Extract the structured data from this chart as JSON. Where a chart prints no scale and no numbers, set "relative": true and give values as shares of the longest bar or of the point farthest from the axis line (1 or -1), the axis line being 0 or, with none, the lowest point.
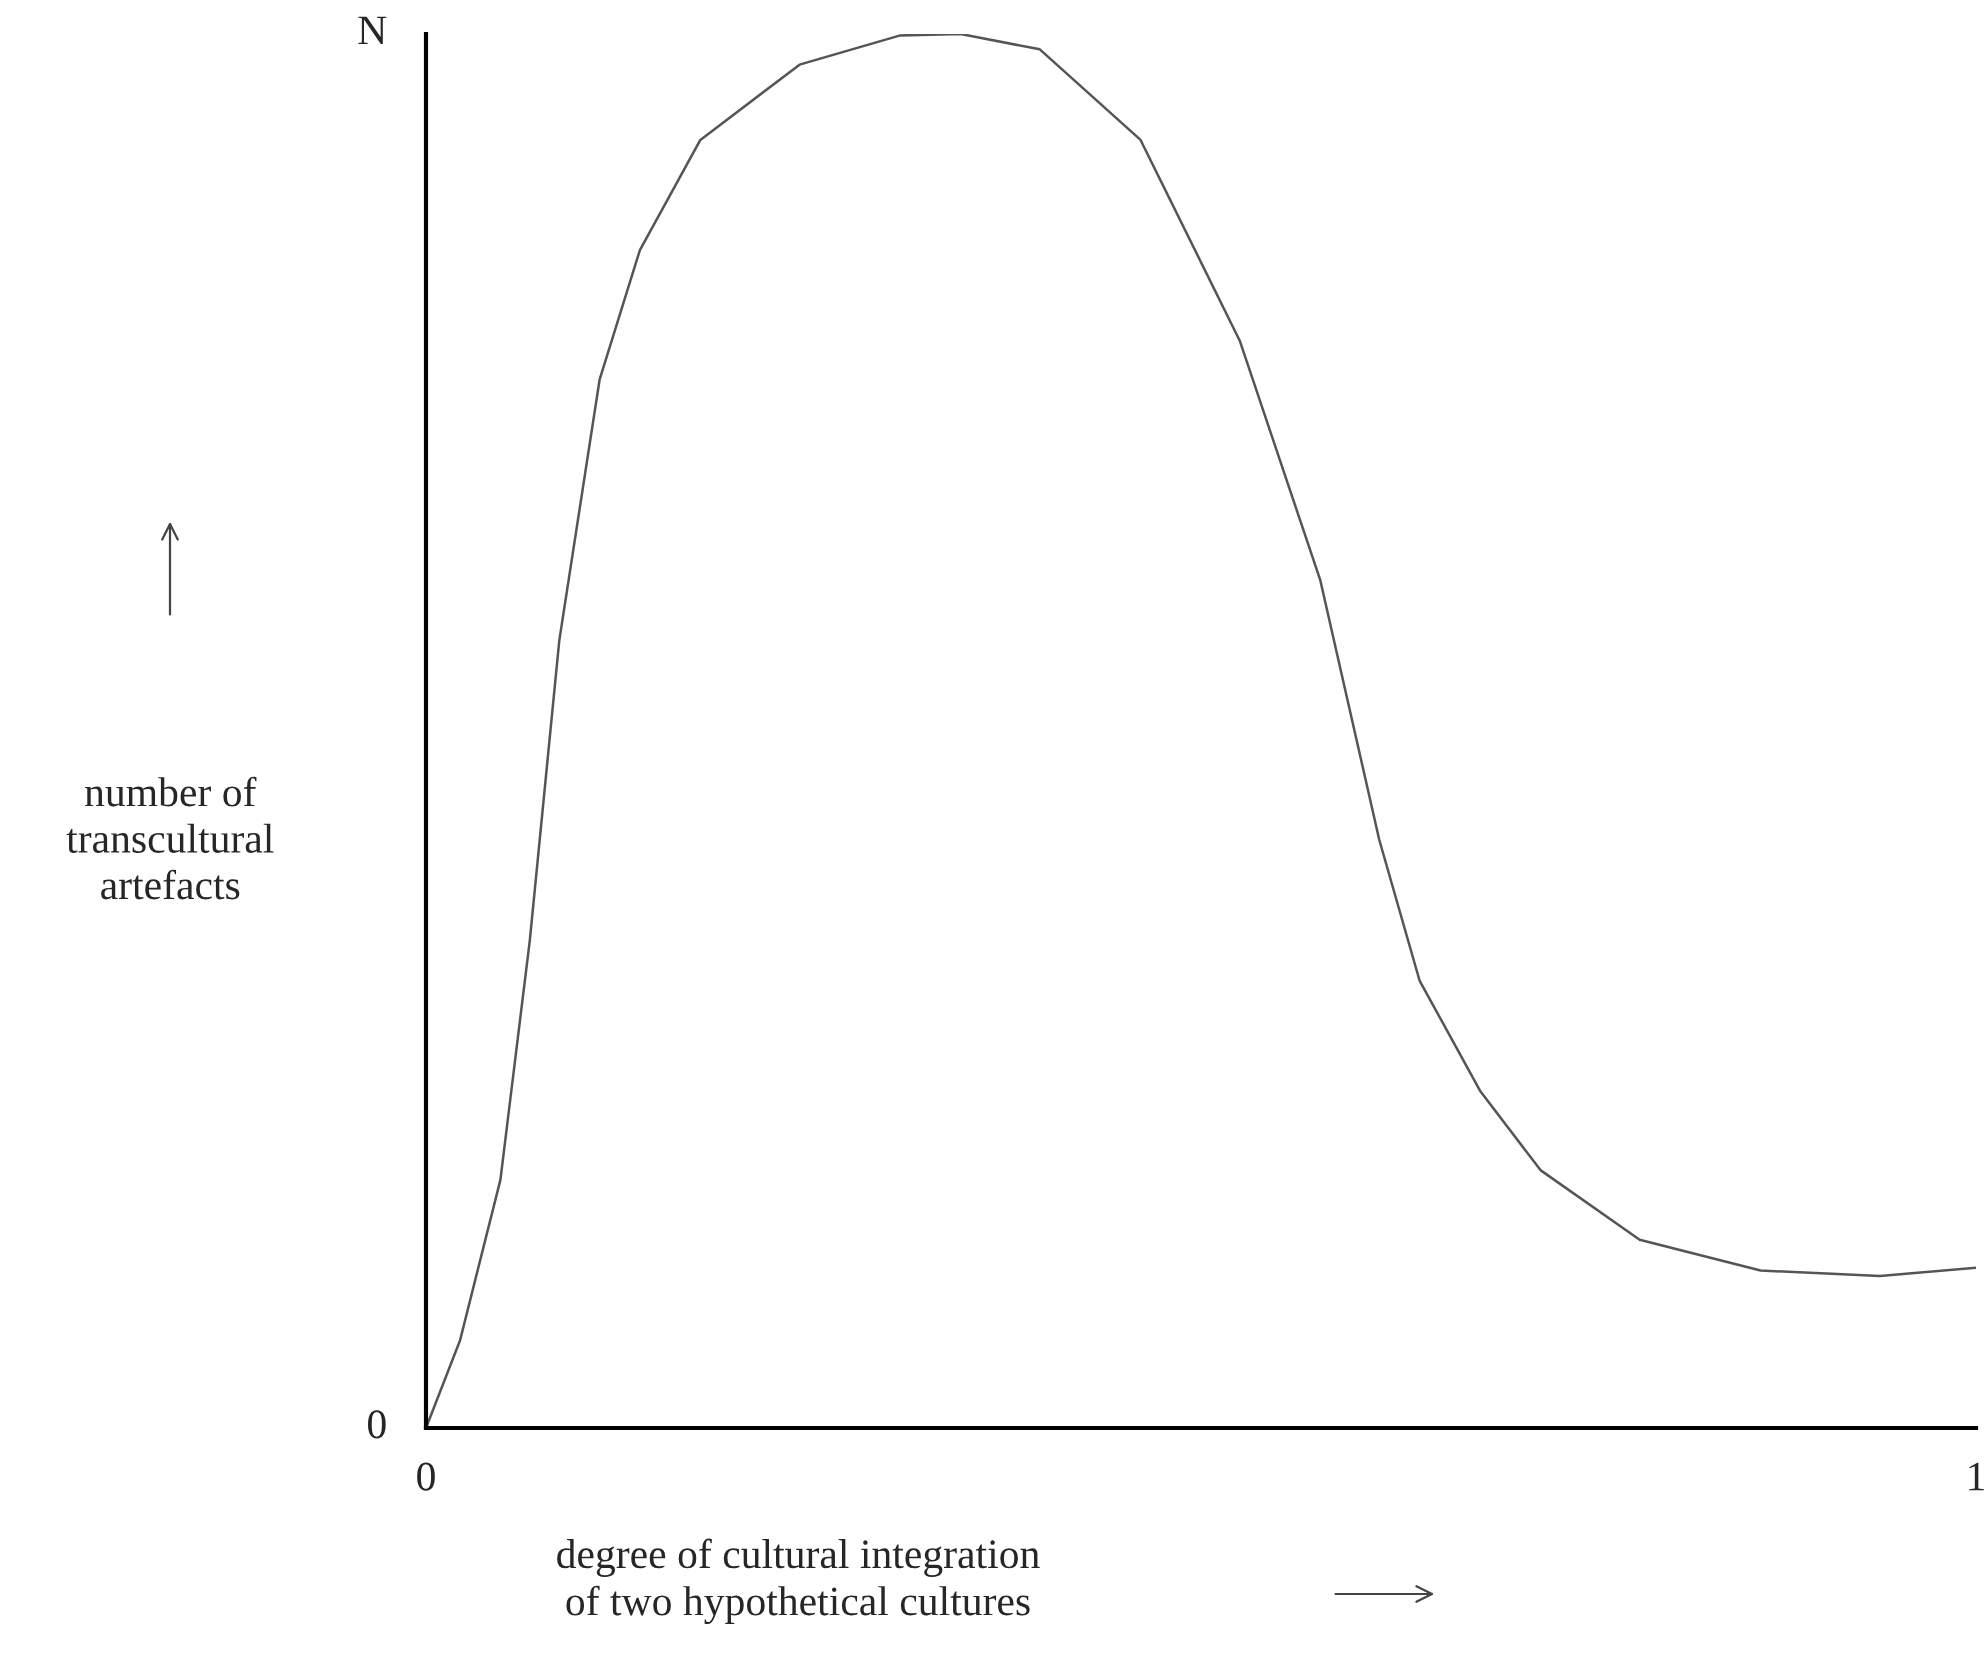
{
  "chart_data": {
    "type": "line",
    "xlabel": "degree of cultural integration\nof two hypothetical cultures",
    "ylabel": "number of\ntranscultural\nartefacts",
    "x": [
      0,
      0.022,
      0.048,
      0.067,
      0.086,
      0.112,
      0.138,
      0.177,
      0.241,
      0.306,
      0.345,
      0.396,
      0.461,
      0.525,
      0.577,
      0.615,
      0.641,
      0.68,
      0.719,
      0.783,
      0.861,
      0.938,
      1.0
    ],
    "series": [
      {
        "color": "#555555",
        "values": [
          0,
          0.063,
          0.178,
          0.35,
          0.565,
          0.752,
          0.845,
          0.924,
          0.978,
          0.999,
          1.0,
          0.989,
          0.924,
          0.78,
          0.608,
          0.422,
          0.321,
          0.242,
          0.185,
          0.135,
          0.113,
          0.109,
          0.115
        ]
      }
    ],
    "xlim": [
      0,
      1
    ],
    "relative": true,
    "xticks": [
      0,
      1
    ],
    "annotations": [
      "N",
      "0"
    ],
    "grid": false,
    "legend": false,
    "marker": "none",
    "line_style": "solid"
  }
}
